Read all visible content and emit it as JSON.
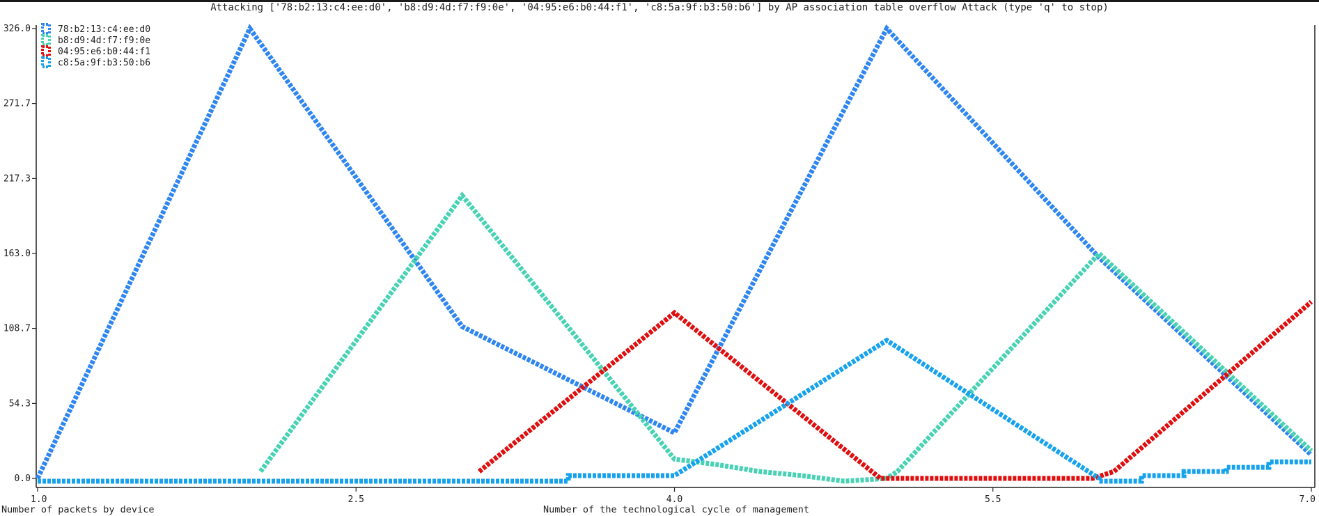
{
  "chart_data": {
    "type": "line",
    "title": "Attacking ['78:b2:13:c4:ee:d0', 'b8:d9:4d:f7:f9:0e', '04:95:e6:b0:44:f1', 'c8:5a:9f:b3:50:b6'] by AP association table overflow Attack (type 'q' to stop)",
    "xlabel": "Number of the technological cycle of management",
    "ylabel": "Number of packets by device",
    "xlim": [
      1.0,
      7.0
    ],
    "ylim": [
      0.0,
      326.0
    ],
    "xticks": [
      "1.0",
      "2.5",
      "4.0",
      "5.5",
      "7.0"
    ],
    "yticks": [
      "0.0",
      "54.3",
      "108.7",
      "163.0",
      "217.3",
      "271.7",
      "326.0"
    ],
    "legend_position": "top-left",
    "grid": false,
    "series": [
      {
        "name": "78:b2:13:c4:ee:d0",
        "color": "#2f86f0",
        "points": [
          [
            1.0,
            0
          ],
          [
            2.0,
            326
          ],
          [
            3.0,
            110
          ],
          [
            4.0,
            33
          ],
          [
            5.0,
            326
          ],
          [
            6.0,
            160
          ],
          [
            7.0,
            17
          ]
        ]
      },
      {
        "name": "b8:d9:4d:f7:f9:0e",
        "color": "#48d2b4",
        "points": [
          [
            2.05,
            5
          ],
          [
            3.0,
            205
          ],
          [
            4.0,
            14
          ],
          [
            4.2,
            10
          ],
          [
            4.4,
            5
          ],
          [
            4.6,
            2
          ],
          [
            4.8,
            -2
          ],
          [
            5.0,
            0
          ],
          [
            5.05,
            5
          ],
          [
            6.0,
            163
          ],
          [
            7.0,
            20
          ]
        ]
      },
      {
        "name": "04:95:e6:b0:44:f1",
        "color": "#e00e0e",
        "points": [
          [
            3.08,
            5
          ],
          [
            4.0,
            120
          ],
          [
            4.97,
            0
          ],
          [
            5.97,
            0
          ],
          [
            6.07,
            5
          ],
          [
            7.0,
            128
          ]
        ]
      },
      {
        "name": "c8:5a:9f:b3:50:b6",
        "color": "#16a2ec",
        "points": [
          [
            1.0,
            -2
          ],
          [
            3.5,
            -2
          ],
          [
            3.5,
            2
          ],
          [
            4.0,
            2
          ],
          [
            5.0,
            100
          ],
          [
            6.0,
            0
          ],
          [
            6.0,
            -2
          ],
          [
            6.2,
            -2
          ],
          [
            6.2,
            2
          ],
          [
            6.4,
            2
          ],
          [
            6.4,
            5
          ],
          [
            6.6,
            5
          ],
          [
            6.6,
            8
          ],
          [
            6.8,
            8
          ],
          [
            6.8,
            12
          ],
          [
            7.0,
            12
          ]
        ]
      }
    ]
  }
}
